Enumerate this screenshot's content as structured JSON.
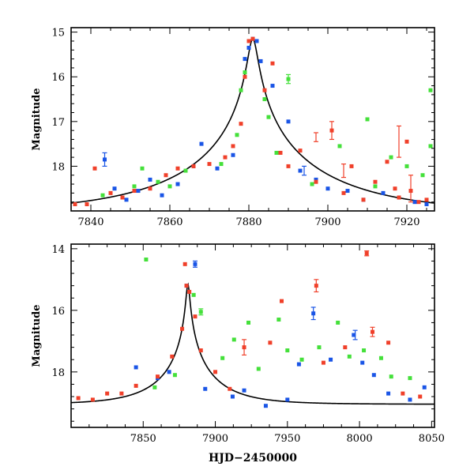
{
  "colors": {
    "blue": "#1a55e6",
    "green": "#44e03a",
    "red": "#f0402a",
    "axis": "#000000",
    "model": "#000000"
  },
  "chart_data": [
    {
      "type": "scatter",
      "panel": "top",
      "ylabel": "Magnitude",
      "xlabel": "",
      "xlim": [
        7835,
        7927
      ],
      "ylim": [
        19.0,
        14.9
      ],
      "y_inverted": true,
      "xticks": [
        7840,
        7860,
        7880,
        7900,
        7920
      ],
      "xtick_labels": [
        "7840",
        "7860",
        "7880",
        "7900",
        "7920"
      ],
      "yticks": [
        15,
        16,
        17,
        18
      ],
      "ytick_labels": [
        "15",
        "16",
        "17",
        "18"
      ],
      "model_curve": {
        "type": "line",
        "peak_x": 7881,
        "peak_mag": 15.15,
        "baseline_mag": 19.05,
        "tE": 38,
        "u0": 0.03
      },
      "series": [
        {
          "color": "blue",
          "points": [
            [
              7843.5,
              17.85
            ],
            [
              7846,
              18.5
            ],
            [
              7849,
              18.75
            ],
            [
              7852,
              18.55
            ],
            [
              7855,
              18.3
            ],
            [
              7858,
              18.65
            ],
            [
              7862,
              18.4
            ],
            [
              7866,
              18.0
            ],
            [
              7868,
              17.5
            ],
            [
              7872,
              18.05
            ],
            [
              7876,
              17.75
            ],
            [
              7879,
              15.6
            ],
            [
              7880,
              15.35
            ],
            [
              7881,
              15.15
            ],
            [
              7882,
              15.2
            ],
            [
              7883,
              15.65
            ],
            [
              7886,
              16.2
            ],
            [
              7890,
              17.0
            ],
            [
              7893,
              18.1
            ],
            [
              7897,
              18.3
            ],
            [
              7900,
              18.5
            ],
            [
              7905,
              18.55
            ],
            [
              7909,
              18.75
            ],
            [
              7914,
              18.6
            ],
            [
              7918,
              18.7
            ],
            [
              7922,
              18.8
            ],
            [
              7925,
              18.85
            ]
          ],
          "error_bars": [
            [
              7843.5,
              17.85,
              0.15
            ],
            [
              7894,
              18.1,
              0.1
            ]
          ]
        },
        {
          "color": "green",
          "points": [
            [
              7843,
              18.65
            ],
            [
              7851,
              18.45
            ],
            [
              7853,
              18.05
            ],
            [
              7857,
              18.35
            ],
            [
              7860,
              18.45
            ],
            [
              7864,
              18.1
            ],
            [
              7873,
              17.95
            ],
            [
              7877,
              17.3
            ],
            [
              7878,
              16.3
            ],
            [
              7879,
              15.9
            ],
            [
              7884,
              16.5
            ],
            [
              7885,
              16.9
            ],
            [
              7887,
              17.7
            ],
            [
              7890,
              16.05
            ],
            [
              7896,
              18.4
            ],
            [
              7903,
              17.55
            ],
            [
              7910,
              16.95
            ],
            [
              7912,
              18.45
            ],
            [
              7916,
              17.8
            ],
            [
              7920,
              18.0
            ],
            [
              7924,
              18.2
            ],
            [
              7926,
              16.3
            ],
            [
              7926,
              17.55
            ]
          ],
          "error_bars": [
            [
              7890,
              16.05,
              0.1
            ]
          ]
        },
        {
          "color": "red",
          "points": [
            [
              7836,
              18.85
            ],
            [
              7839,
              18.85
            ],
            [
              7841,
              18.05
            ],
            [
              7845,
              18.6
            ],
            [
              7848,
              18.7
            ],
            [
              7851,
              18.55
            ],
            [
              7855,
              18.5
            ],
            [
              7859,
              18.2
            ],
            [
              7862,
              18.05
            ],
            [
              7866,
              18.0
            ],
            [
              7870,
              17.95
            ],
            [
              7874,
              17.8
            ],
            [
              7876,
              17.55
            ],
            [
              7878,
              17.05
            ],
            [
              7879,
              16.0
            ],
            [
              7880,
              15.2
            ],
            [
              7881,
              15.15
            ],
            [
              7884,
              16.3
            ],
            [
              7886,
              15.7
            ],
            [
              7888,
              17.7
            ],
            [
              7890,
              18.0
            ],
            [
              7893,
              17.65
            ],
            [
              7897,
              18.35
            ],
            [
              7901,
              17.2
            ],
            [
              7904,
              18.6
            ],
            [
              7906,
              18.0
            ],
            [
              7909,
              18.75
            ],
            [
              7912,
              18.35
            ],
            [
              7915,
              17.9
            ],
            [
              7917,
              18.5
            ],
            [
              7918,
              18.7
            ],
            [
              7920,
              17.45
            ],
            [
              7921,
              18.55
            ],
            [
              7923,
              18.8
            ],
            [
              7925,
              18.75
            ]
          ],
          "error_bars": [
            [
              7897,
              17.35,
              0.1
            ],
            [
              7901,
              17.2,
              0.2
            ],
            [
              7904,
              18.1,
              0.15
            ],
            [
              7918,
              17.45,
              0.35
            ],
            [
              7921,
              18.5,
              0.3
            ]
          ]
        }
      ]
    },
    {
      "type": "scatter",
      "panel": "bottom",
      "ylabel": "Magnitude",
      "xlabel": "HJD−2450000",
      "xlim": [
        7800,
        8052
      ],
      "ylim": [
        19.8,
        13.85
      ],
      "y_inverted": true,
      "xticks": [
        7850,
        7900,
        7950,
        8000,
        8050
      ],
      "xtick_labels": [
        "7850",
        "7900",
        "7950",
        "8000",
        "8050"
      ],
      "yticks": [
        14,
        16,
        18
      ],
      "ytick_labels": [
        "14",
        "16",
        "18"
      ],
      "model_curve": {
        "type": "line",
        "peak_x": 7881,
        "peak_mag": 15.15,
        "baseline_mag": 19.05,
        "tE": 38,
        "u0": 0.03
      },
      "series": [
        {
          "color": "blue",
          "points": [
            [
              7845,
              17.85
            ],
            [
              7860,
              18.2
            ],
            [
              7868,
              18.0
            ],
            [
              7880,
              15.2
            ],
            [
              7886,
              14.5
            ],
            [
              7893,
              18.55
            ],
            [
              7912,
              18.8
            ],
            [
              7920,
              18.6
            ],
            [
              7935,
              19.1
            ],
            [
              7950,
              18.9
            ],
            [
              7958,
              17.75
            ],
            [
              7968,
              16.1
            ],
            [
              7980,
              17.6
            ],
            [
              7996,
              16.8
            ],
            [
              8002,
              17.7
            ],
            [
              8010,
              18.1
            ],
            [
              8020,
              18.7
            ],
            [
              8035,
              18.9
            ],
            [
              8045,
              18.5
            ]
          ],
          "error_bars": [
            [
              7968,
              16.1,
              0.2
            ],
            [
              7997,
              16.8,
              0.15
            ],
            [
              7886,
              14.5,
              0.1
            ]
          ]
        },
        {
          "color": "green",
          "points": [
            [
              7852,
              14.35
            ],
            [
              7858,
              18.5
            ],
            [
              7872,
              18.1
            ],
            [
              7885,
              15.5
            ],
            [
              7890,
              16.05
            ],
            [
              7905,
              17.55
            ],
            [
              7913,
              16.95
            ],
            [
              7923,
              16.4
            ],
            [
              7930,
              17.9
            ],
            [
              7944,
              16.3
            ],
            [
              7950,
              17.3
            ],
            [
              7960,
              17.6
            ],
            [
              7972,
              17.2
            ],
            [
              7985,
              16.4
            ],
            [
              7993,
              17.5
            ],
            [
              8003,
              17.3
            ],
            [
              8015,
              17.55
            ],
            [
              8022,
              18.15
            ],
            [
              8035,
              18.2
            ]
          ],
          "error_bars": [
            [
              7890,
              16.05,
              0.1
            ]
          ]
        },
        {
          "color": "red",
          "points": [
            [
              7805,
              18.85
            ],
            [
              7815,
              18.9
            ],
            [
              7825,
              18.7
            ],
            [
              7835,
              18.7
            ],
            [
              7845,
              18.45
            ],
            [
              7860,
              18.15
            ],
            [
              7870,
              17.5
            ],
            [
              7877,
              16.6
            ],
            [
              7879,
              14.5
            ],
            [
              7880,
              15.2
            ],
            [
              7882,
              15.4
            ],
            [
              7886,
              16.2
            ],
            [
              7890,
              17.3
            ],
            [
              7900,
              18.0
            ],
            [
              7910,
              18.55
            ],
            [
              7920,
              17.2
            ],
            [
              7938,
              17.05
            ],
            [
              7946,
              15.7
            ],
            [
              7970,
              15.2
            ],
            [
              7975,
              17.7
            ],
            [
              7990,
              17.2
            ],
            [
              8005,
              14.15
            ],
            [
              8009,
              16.7
            ],
            [
              8020,
              17.05
            ],
            [
              8030,
              18.7
            ],
            [
              8042,
              18.8
            ]
          ],
          "error_bars": [
            [
              7970,
              15.2,
              0.2
            ],
            [
              8005,
              14.15,
              0.08
            ],
            [
              7920,
              17.2,
              0.25
            ],
            [
              8009,
              16.7,
              0.15
            ]
          ]
        }
      ]
    }
  ]
}
